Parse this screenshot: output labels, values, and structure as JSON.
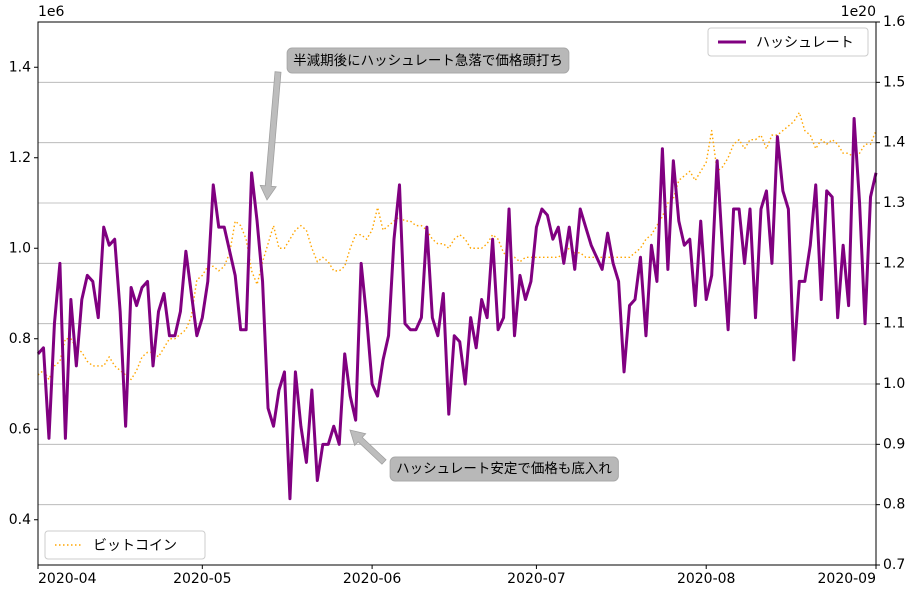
{
  "chart_data": {
    "type": "line",
    "xlim": [
      "2020-04",
      "2020-09"
    ],
    "xticks": [
      "2020-04",
      "2020-05",
      "2020-06",
      "2020-07",
      "2020-08",
      "2020-09"
    ],
    "ylim": [
      0.3,
      1.5
    ],
    "yticks": [
      0.4,
      0.6,
      0.8,
      {
        "value": 1,
        "label": "1.0"
      },
      1.2,
      1.4
    ],
    "y_offset_label": "1e6",
    "y2lim": [
      0.7,
      1.6
    ],
    "y2ticks": [
      0.7,
      0.8,
      0.9,
      {
        "value": 1,
        "label": "1.0"
      },
      1.1,
      1.2,
      1.3,
      1.4,
      1.5,
      1.6
    ],
    "y2_offset_label": "1e20",
    "grid": "y2",
    "series": [
      {
        "name": "ビットコイン",
        "color": "#ffa500",
        "linestyle": "dotted",
        "axis": "y",
        "legend": "lower left",
        "values": [
          0.72,
          0.73,
          0.71,
          0.74,
          0.75,
          0.8,
          0.8,
          0.78,
          0.77,
          0.75,
          0.74,
          0.74,
          0.74,
          0.76,
          0.74,
          0.73,
          0.72,
          0.71,
          0.73,
          0.76,
          0.77,
          0.77,
          0.76,
          0.78,
          0.8,
          0.8,
          0.81,
          0.82,
          0.85,
          0.93,
          0.94,
          0.96,
          0.96,
          0.95,
          0.96,
          0.99,
          1.06,
          1.05,
          1.02,
          0.95,
          0.92,
          0.97,
          1.01,
          1.05,
          1.0,
          1.0,
          1.02,
          1.04,
          1.05,
          1.04,
          1.0,
          0.97,
          0.98,
          0.97,
          0.95,
          0.95,
          0.96,
          1.0,
          1.03,
          1.03,
          1.02,
          1.04,
          1.09,
          1.04,
          1.05,
          1.06,
          1.07,
          1.06,
          1.06,
          1.05,
          1.05,
          1.04,
          1.02,
          1.01,
          1.01,
          1.0,
          1.02,
          1.03,
          1.02,
          1.0,
          1.0,
          1.0,
          1.01,
          1.03,
          1.02,
          0.99,
          0.98,
          0.98,
          0.97,
          0.98,
          0.98,
          0.98,
          0.98,
          0.98,
          0.98,
          0.98,
          0.99,
          1.0,
          0.99,
          0.99,
          0.98,
          0.98,
          0.98,
          0.98,
          0.98,
          0.98,
          0.98,
          0.98,
          0.98,
          0.99,
          1.0,
          1.02,
          1.03,
          1.05,
          1.07,
          1.1,
          1.11,
          1.15,
          1.16,
          1.17,
          1.15,
          1.17,
          1.19,
          1.26,
          1.17,
          1.18,
          1.2,
          1.23,
          1.24,
          1.22,
          1.24,
          1.24,
          1.25,
          1.22,
          1.25,
          1.25,
          1.26,
          1.27,
          1.28,
          1.3,
          1.26,
          1.25,
          1.22,
          1.24,
          1.23,
          1.24,
          1.23,
          1.21,
          1.21,
          1.2,
          1.21,
          1.23,
          1.23,
          1.26
        ]
      },
      {
        "name": "ハッシュレート",
        "color": "#800080",
        "linestyle": "solid",
        "axis": "y2",
        "legend": "upper right",
        "values": [
          1.05,
          1.06,
          0.91,
          1.1,
          1.2,
          0.91,
          1.14,
          1.03,
          1.14,
          1.18,
          1.17,
          1.11,
          1.26,
          1.23,
          1.24,
          1.12,
          0.93,
          1.16,
          1.13,
          1.16,
          1.17,
          1.03,
          1.12,
          1.15,
          1.08,
          1.08,
          1.12,
          1.22,
          1.15,
          1.08,
          1.11,
          1.17,
          1.33,
          1.26,
          1.26,
          1.22,
          1.18,
          1.09,
          1.09,
          1.35,
          1.27,
          1.17,
          0.96,
          0.93,
          0.99,
          1.02,
          0.81,
          1.02,
          0.93,
          0.87,
          0.99,
          0.84,
          0.9,
          0.9,
          0.93,
          0.9,
          1.05,
          0.98,
          0.94,
          1.2,
          1.11,
          1.0,
          0.98,
          1.04,
          1.08,
          1.24,
          1.33,
          1.1,
          1.09,
          1.09,
          1.11,
          1.26,
          1.11,
          1.08,
          1.15,
          0.95,
          1.08,
          1.07,
          1.0,
          1.11,
          1.06,
          1.14,
          1.11,
          1.24,
          1.09,
          1.11,
          1.29,
          1.08,
          1.18,
          1.14,
          1.17,
          1.26,
          1.29,
          1.28,
          1.24,
          1.26,
          1.2,
          1.26,
          1.19,
          1.29,
          1.26,
          1.23,
          1.21,
          1.19,
          1.25,
          1.2,
          1.17,
          1.02,
          1.13,
          1.14,
          1.21,
          1.08,
          1.23,
          1.17,
          1.39,
          1.19,
          1.37,
          1.27,
          1.23,
          1.24,
          1.13,
          1.27,
          1.14,
          1.18,
          1.37,
          1.22,
          1.09,
          1.29,
          1.29,
          1.2,
          1.29,
          1.11,
          1.29,
          1.32,
          1.2,
          1.41,
          1.32,
          1.29,
          1.04,
          1.17,
          1.17,
          1.23,
          1.33,
          1.14,
          1.32,
          1.31,
          1.11,
          1.23,
          1.13,
          1.44,
          1.3,
          1.1,
          1.31,
          1.35
        ]
      }
    ],
    "annotations": [
      "半減期後にハッシュレート急落で価格頭打ち",
      "ハッシュレート安定で価格も底入れ"
    ]
  }
}
